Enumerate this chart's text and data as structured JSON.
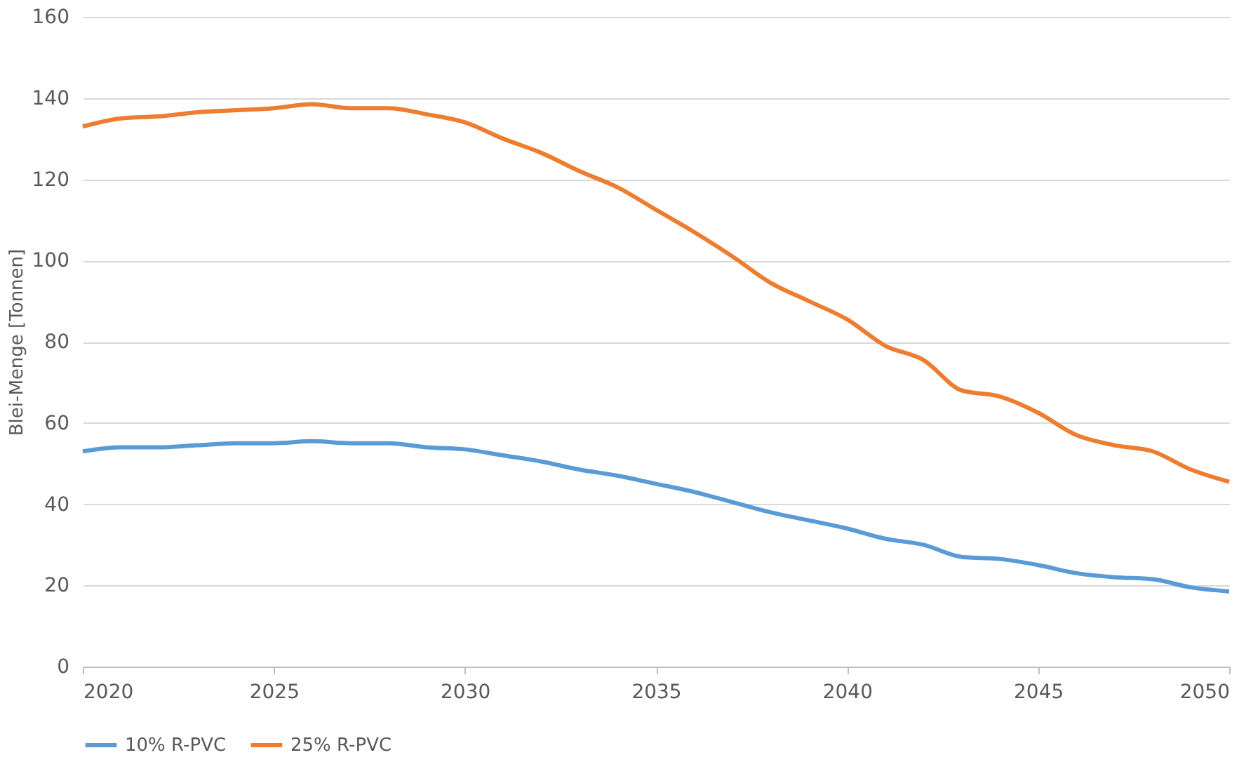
{
  "chart_data": {
    "type": "line",
    "ylabel": "Blei-Menge [Tonnen]",
    "x": [
      2020,
      2021,
      2022,
      2023,
      2024,
      2025,
      2026,
      2027,
      2028,
      2029,
      2030,
      2031,
      2032,
      2033,
      2034,
      2035,
      2036,
      2037,
      2038,
      2039,
      2040,
      2041,
      2042,
      2043,
      2044,
      2045,
      2046,
      2047,
      2048,
      2049,
      2050
    ],
    "series": [
      {
        "name": "10% R-PVC",
        "color": "#5b9bd5",
        "values": [
          53,
          54,
          54,
          54.5,
          55,
          55,
          55.5,
          55,
          55,
          54,
          53.5,
          52,
          50.5,
          48.5,
          47,
          45,
          43,
          40.5,
          38,
          36,
          34,
          31.5,
          30,
          27,
          26.5,
          25,
          23,
          22,
          21.5,
          19.5,
          18.5
        ]
      },
      {
        "name": "25% R-PVC",
        "color": "#ed7d31",
        "values": [
          133,
          135,
          135.5,
          136.5,
          137,
          137.5,
          138.5,
          137.5,
          137.5,
          136,
          134,
          130,
          126.5,
          122,
          118,
          112.5,
          107,
          101,
          94.5,
          90,
          85.5,
          79,
          75.5,
          68,
          66.5,
          62.5,
          57,
          54.5,
          53,
          48.5,
          45.5
        ]
      }
    ],
    "xlim": [
      2020,
      2050
    ],
    "xticks": [
      2020,
      2025,
      2030,
      2035,
      2040,
      2045,
      2050
    ],
    "ylim": [
      0,
      160
    ],
    "yticks": [
      0,
      20,
      40,
      60,
      80,
      100,
      120,
      140,
      160
    ],
    "grid": "y",
    "legend": "bottom",
    "marker": "none",
    "line_style": "solid"
  }
}
